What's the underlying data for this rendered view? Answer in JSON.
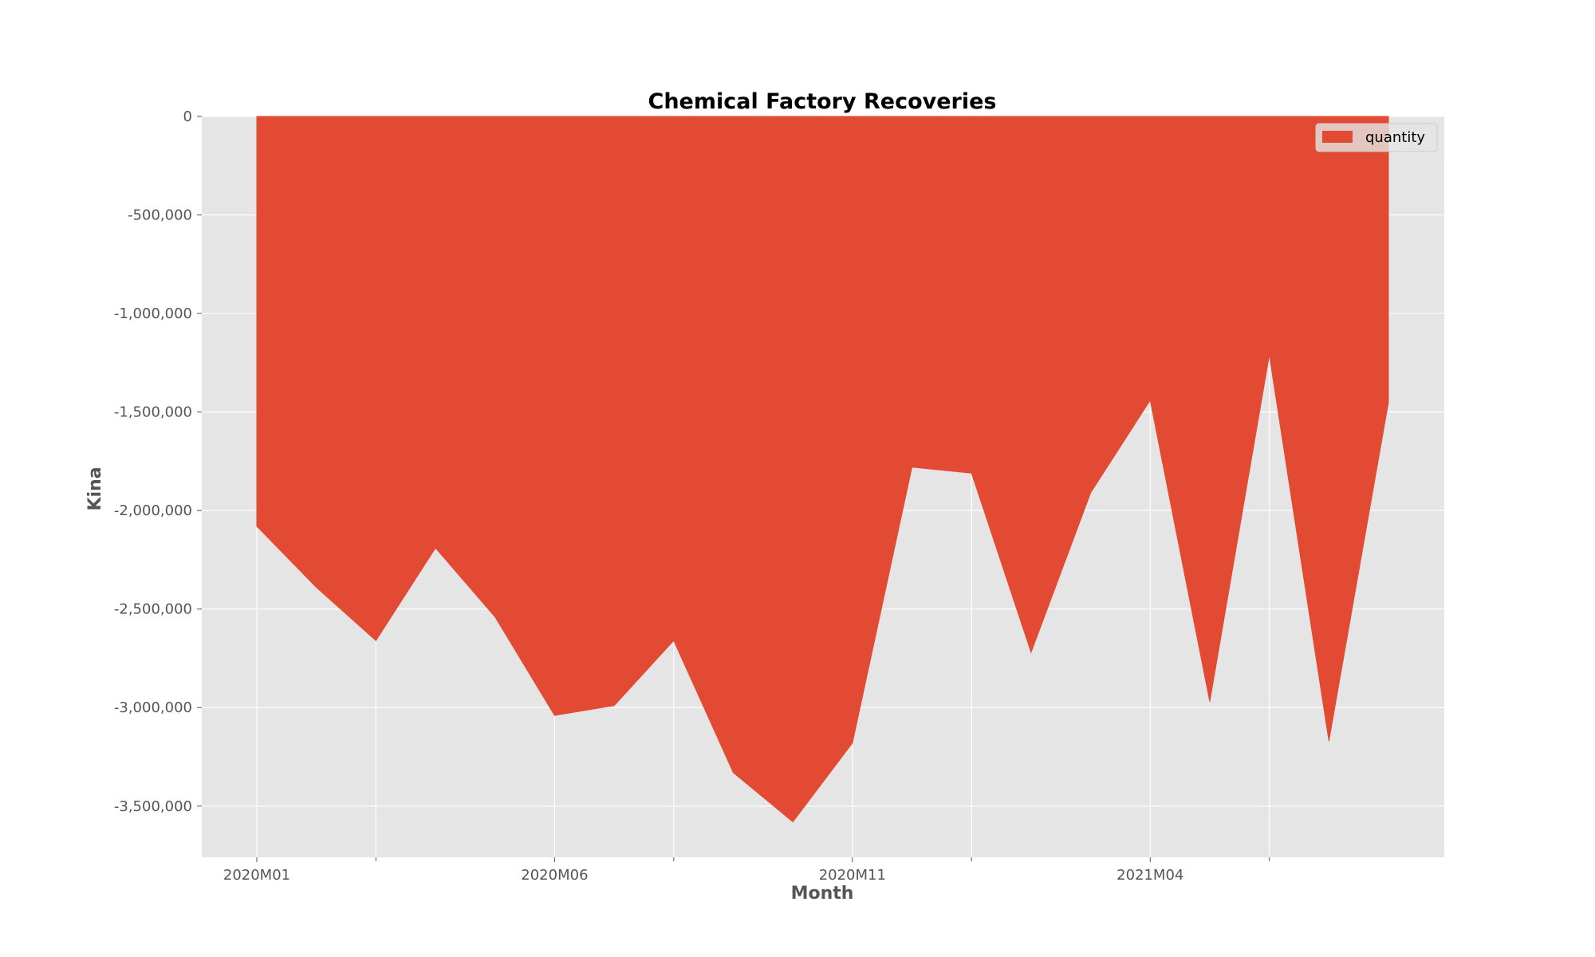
{
  "chart_data": {
    "type": "area",
    "title": "Chemical Factory Recoveries",
    "xlabel": "Month",
    "ylabel": "Kina",
    "x": [
      "2020M01",
      "2020M02",
      "2020M03",
      "2020M04",
      "2020M05",
      "2020M06",
      "2020M07",
      "2020M08",
      "2020M09",
      "2020M10",
      "2020M11",
      "2020M12",
      "2021M01",
      "2021M02",
      "2021M03",
      "2021M04",
      "2021M05",
      "2021M06",
      "2021M07",
      "2021M08"
    ],
    "x_tick_labels": [
      {
        "at": "2020M01",
        "label": "2020M01"
      },
      {
        "at": "2020M06",
        "label": "2020M06"
      },
      {
        "at": "2020M11",
        "label": "2020M11"
      },
      {
        "at": "2021M04",
        "label": "2021M04"
      }
    ],
    "x_minor_ticks": [
      "2020M03",
      "2020M08",
      "2021M01",
      "2021M06"
    ],
    "series": [
      {
        "name": "quantity",
        "color": "#E24A33",
        "values": [
          -2080000,
          -2390000,
          -2660000,
          -2190000,
          -2540000,
          -3040000,
          -2990000,
          -2660000,
          -3330000,
          -3580000,
          -3180000,
          -1780000,
          -1810000,
          -2720000,
          -1910000,
          -1440000,
          -2970000,
          -1210000,
          -3170000,
          -1450000
        ]
      }
    ],
    "yticks": [
      0,
      -500000,
      -1000000,
      -1500000,
      -2000000,
      -2500000,
      -3000000,
      -3500000
    ],
    "ytick_labels": [
      "0",
      "-500,000",
      "-1,000,000",
      "-1,500,000",
      "-2,000,000",
      "-2,500,000",
      "-3,000,000",
      "-3,500,000"
    ],
    "ylim": [
      -3760000,
      0
    ],
    "legend": {
      "position": "top-right",
      "entries": [
        "quantity"
      ]
    },
    "grid": true,
    "background": "#E5E5E5"
  }
}
